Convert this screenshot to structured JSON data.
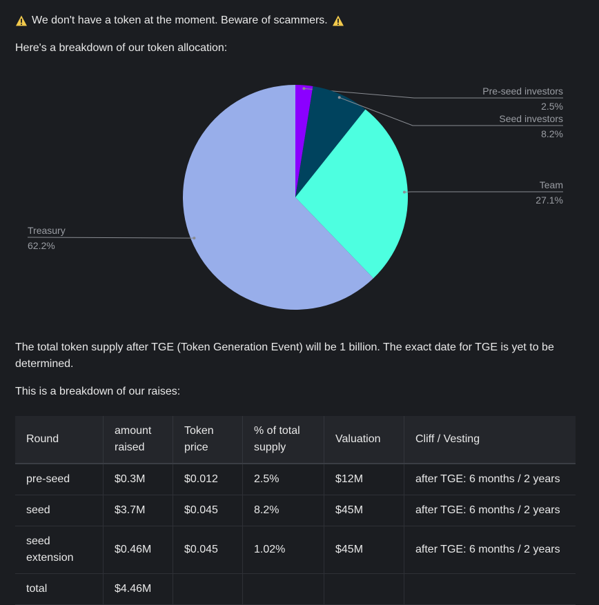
{
  "warning": {
    "text": "We don't have a token at the moment. Beware of scammers.",
    "icon": "warning-icon",
    "icon_color": "#f2c94c"
  },
  "intro_allocation": "Here's a breakdown of our token allocation:",
  "chart_data": {
    "type": "pie",
    "start_angle_deg": 0,
    "direction": "clockwise",
    "slices": [
      {
        "label": "Pre-seed investors",
        "value": 2.5,
        "display": "2.5%",
        "color": "#8b00ff",
        "label_side": "right"
      },
      {
        "label": "Seed investors",
        "value": 8.2,
        "display": "8.2%",
        "color": "#00435e",
        "label_side": "right"
      },
      {
        "label": "Team",
        "value": 27.1,
        "display": "27.1%",
        "color": "#4dffe0",
        "label_side": "right"
      },
      {
        "label": "Treasury",
        "value": 62.2,
        "display": "62.2%",
        "color": "#98aeea",
        "label_side": "left"
      }
    ]
  },
  "supply_text": "The total token supply after TGE (Token Generation Event) will be 1 billion. The exact date for TGE is yet to be determined.",
  "intro_raises": "This is a breakdown of our raises:",
  "table": {
    "headers": [
      "Round",
      "amount raised",
      "Token price",
      "% of total supply",
      "Valuation",
      "Cliff / Vesting"
    ],
    "rows": [
      [
        "pre-seed",
        "$0.3M",
        "$0.012",
        "2.5%",
        "$12M",
        "after TGE: 6 months / 2 years"
      ],
      [
        "seed",
        "$3.7M",
        "$0.045",
        "8.2%",
        "$45M",
        "after TGE: 6 months / 2 years"
      ],
      [
        "seed extension",
        "$0.46M",
        "$0.045",
        "1.02%",
        "$45M",
        "after TGE: 6 months / 2 years"
      ],
      [
        "total",
        "$4.46M",
        "",
        "",
        "",
        ""
      ]
    ]
  }
}
